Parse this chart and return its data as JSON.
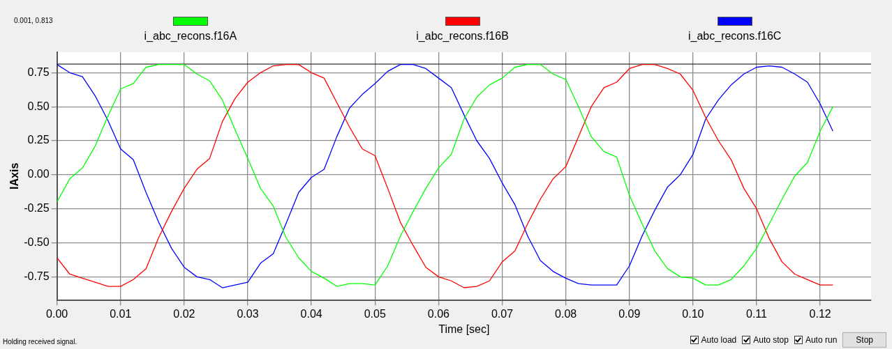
{
  "chart_data": {
    "type": "line",
    "xlabel": "Time [sec]",
    "ylabel": "IAxis",
    "x": [
      0,
      0.002,
      0.004,
      0.006,
      0.008,
      0.01,
      0.012,
      0.014,
      0.016,
      0.018,
      0.02,
      0.022,
      0.024,
      0.026,
      0.028,
      0.03,
      0.032,
      0.034,
      0.036,
      0.038,
      0.04,
      0.042,
      0.044,
      0.046,
      0.048,
      0.05,
      0.052,
      0.054,
      0.056,
      0.058,
      0.06,
      0.062,
      0.064,
      0.066,
      0.068,
      0.07,
      0.072,
      0.074,
      0.076,
      0.078,
      0.08,
      0.082,
      0.084,
      0.086,
      0.088,
      0.09,
      0.092,
      0.094,
      0.096,
      0.098,
      0.1,
      0.102,
      0.104,
      0.106,
      0.108,
      0.11,
      0.112,
      0.114,
      0.116,
      0.118,
      0.12,
      0.122
    ],
    "series": [
      {
        "name": "i_abc_recons.f16A",
        "color": "#00ff00",
        "values": [
          -0.2,
          -0.03,
          0.05,
          0.21,
          0.43,
          0.63,
          0.67,
          0.79,
          0.81,
          0.81,
          0.81,
          0.74,
          0.69,
          0.55,
          0.33,
          0.12,
          -0.1,
          -0.23,
          -0.46,
          -0.61,
          -0.71,
          -0.76,
          -0.82,
          -0.8,
          -0.8,
          -0.81,
          -0.67,
          -0.45,
          -0.27,
          -0.1,
          0.05,
          0.15,
          0.41,
          0.57,
          0.66,
          0.71,
          0.79,
          0.81,
          0.81,
          0.74,
          0.7,
          0.5,
          0.28,
          0.17,
          0.13,
          -0.15,
          -0.36,
          -0.56,
          -0.69,
          -0.75,
          -0.76,
          -0.81,
          -0.81,
          -0.77,
          -0.67,
          -0.54,
          -0.36,
          -0.18,
          -0.01,
          0.09,
          0.32,
          0.5
        ]
      },
      {
        "name": "i_abc_recons.f16B",
        "color": "#ff0000",
        "values": [
          -0.61,
          -0.73,
          -0.76,
          -0.79,
          -0.82,
          -0.82,
          -0.77,
          -0.69,
          -0.46,
          -0.27,
          -0.1,
          0.04,
          0.12,
          0.39,
          0.56,
          0.68,
          0.75,
          0.8,
          0.81,
          0.81,
          0.75,
          0.71,
          0.53,
          0.35,
          0.19,
          0.14,
          -0.1,
          -0.35,
          -0.52,
          -0.68,
          -0.75,
          -0.78,
          -0.83,
          -0.82,
          -0.78,
          -0.64,
          -0.56,
          -0.36,
          -0.18,
          -0.03,
          0.06,
          0.28,
          0.5,
          0.64,
          0.68,
          0.78,
          0.81,
          0.81,
          0.78,
          0.74,
          0.62,
          0.42,
          0.25,
          0.11,
          -0.1,
          -0.25,
          -0.47,
          -0.64,
          -0.73,
          -0.77,
          -0.81,
          -0.81
        ]
      },
      {
        "name": "i_abc_recons.f16C",
        "color": "#0000ff",
        "values": [
          0.81,
          0.75,
          0.72,
          0.58,
          0.4,
          0.19,
          0.11,
          -0.13,
          -0.35,
          -0.54,
          -0.68,
          -0.75,
          -0.77,
          -0.83,
          -0.81,
          -0.79,
          -0.65,
          -0.58,
          -0.36,
          -0.13,
          -0.02,
          0.04,
          0.28,
          0.49,
          0.59,
          0.67,
          0.76,
          0.81,
          0.81,
          0.78,
          0.71,
          0.64,
          0.44,
          0.25,
          0.12,
          -0.06,
          -0.22,
          -0.45,
          -0.63,
          -0.71,
          -0.76,
          -0.8,
          -0.81,
          -0.81,
          -0.81,
          -0.67,
          -0.45,
          -0.26,
          -0.09,
          0,
          0.15,
          0.41,
          0.55,
          0.66,
          0.74,
          0.79,
          0.8,
          0.79,
          0.74,
          0.68,
          0.52,
          0.32
        ]
      }
    ],
    "xlim": [
      0,
      0.128
    ],
    "ylim": [
      -0.92,
      0.9
    ],
    "xticks": [
      {
        "value": 0,
        "label": "0.00"
      },
      0.01,
      0.02,
      0.03,
      0.04,
      0.05,
      0.06,
      0.07,
      0.08,
      0.09,
      {
        "value": 0.1,
        "label": "0.10"
      },
      0.11,
      0.12
    ],
    "yticks": [
      -0.75,
      {
        "value": -0.5,
        "label": "-0.50"
      },
      -0.25,
      {
        "value": 0,
        "label": "0.00"
      },
      0.25,
      {
        "value": 0.5,
        "label": "0.50"
      },
      0.75
    ],
    "ref_lines": [
      {
        "axis": "y",
        "value": 0.813,
        "color": "#000000"
      }
    ],
    "annotations": [
      "0.001, 0.813",
      "Holding received signal.",
      "Auto load",
      "Auto stop",
      "Auto run",
      "Stop"
    ],
    "grid": true,
    "legend": "top",
    "marker": "none",
    "line_style": "solid"
  }
}
